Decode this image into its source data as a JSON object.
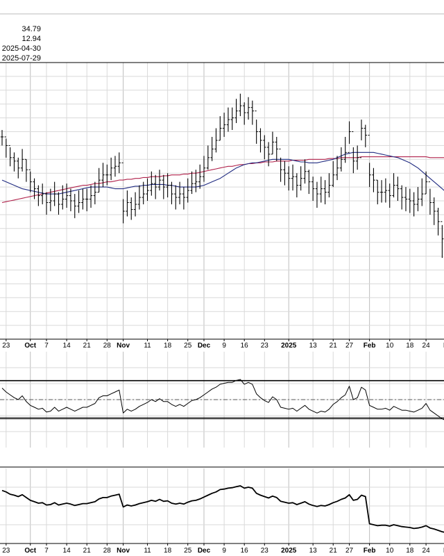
{
  "colors": {
    "price_bars": "#000000",
    "ma_short": "#1f2a80",
    "ma_long": "#b0204a",
    "grid": "#d9d9d9",
    "frame": "#000000",
    "indicator_line": "#000000",
    "midline": "#555555"
  },
  "header": {
    "stats": [
      "34.79",
      "12.94",
      "2025-04-30",
      "2025-07-29"
    ]
  },
  "chart_data": [
    {
      "type": "ohlc",
      "x": [
        "2024-09-20",
        "2024-09-23",
        "2024-09-24",
        "2024-09-25",
        "2024-09-26",
        "2024-09-27",
        "2024-09-30",
        "2024-10-01",
        "2024-10-02",
        "2024-10-03",
        "2024-10-04",
        "2024-10-07",
        "2024-10-08",
        "2024-10-09",
        "2024-10-10",
        "2024-10-11",
        "2024-10-14",
        "2024-10-15",
        "2024-10-16",
        "2024-10-17",
        "2024-10-18",
        "2024-10-21",
        "2024-10-22",
        "2024-10-23",
        "2024-10-24",
        "2024-10-25",
        "2024-10-28",
        "2024-10-29",
        "2024-10-30",
        "2024-10-31",
        "2024-11-01",
        "2024-11-04",
        "2024-11-05",
        "2024-11-06",
        "2024-11-07",
        "2024-11-08",
        "2024-11-11",
        "2024-11-12",
        "2024-11-13",
        "2024-11-14",
        "2024-11-15",
        "2024-11-18",
        "2024-11-19",
        "2024-11-20",
        "2024-11-21",
        "2024-11-22",
        "2024-11-25",
        "2024-11-26",
        "2024-11-27",
        "2024-11-29",
        "2024-12-02",
        "2024-12-03",
        "2024-12-04",
        "2024-12-05",
        "2024-12-06",
        "2024-12-09",
        "2024-12-10",
        "2024-12-11",
        "2024-12-12",
        "2024-12-13",
        "2024-12-16",
        "2024-12-17",
        "2024-12-18",
        "2024-12-19",
        "2024-12-20",
        "2024-12-23",
        "2024-12-24",
        "2024-12-26",
        "2024-12-27",
        "2024-12-30",
        "2024-12-31",
        "2025-01-02",
        "2025-01-03",
        "2025-01-06",
        "2025-01-07",
        "2025-01-08",
        "2025-01-10",
        "2025-01-13",
        "2025-01-14",
        "2025-01-15",
        "2025-01-16",
        "2025-01-17",
        "2025-01-21",
        "2025-01-22",
        "2025-01-23",
        "2025-01-24",
        "2025-01-27",
        "2025-01-28",
        "2025-01-29",
        "2025-01-30",
        "2025-01-31",
        "2025-02-03",
        "2025-02-04",
        "2025-02-05",
        "2025-02-06",
        "2025-02-07",
        "2025-02-10",
        "2025-02-11",
        "2025-02-12",
        "2025-02-13",
        "2025-02-14",
        "2025-02-18",
        "2025-02-19",
        "2025-02-20",
        "2025-02-21",
        "2025-02-24",
        "2025-02-25",
        "2025-02-26",
        "2025-02-27",
        "2025-02-28",
        "2025-03-03"
      ],
      "close": [
        26.2,
        25.7,
        25.0,
        24.8,
        24.4,
        24.9,
        24.3,
        23.6,
        23.2,
        22.8,
        22.9,
        22.4,
        22.5,
        22.9,
        22.3,
        22.6,
        22.8,
        22.5,
        22.2,
        22.4,
        22.6,
        22.6,
        22.8,
        23.0,
        23.7,
        24.0,
        24.0,
        24.4,
        24.5,
        24.7,
        21.9,
        22.4,
        22.0,
        22.3,
        22.7,
        22.9,
        23.1,
        23.5,
        23.3,
        23.7,
        23.3,
        23.4,
        22.9,
        22.7,
        22.9,
        22.7,
        23.1,
        23.5,
        23.6,
        23.9,
        24.4,
        25.0,
        25.5,
        26.0,
        26.7,
        26.9,
        27.2,
        27.3,
        27.7,
        28.0,
        27.6,
        27.9,
        27.7,
        26.5,
        26.0,
        25.6,
        25.2,
        25.9,
        25.5,
        24.3,
        24.1,
        23.8,
        23.9,
        23.4,
        23.8,
        24.2,
        23.6,
        23.2,
        22.9,
        23.2,
        23.0,
        23.4,
        24.0,
        24.4,
        24.9,
        25.3,
        26.5,
        24.8,
        25.0,
        26.7,
        26.3,
        24.0,
        23.7,
        23.0,
        23.0,
        23.1,
        22.8,
        23.4,
        23.2,
        22.7,
        22.6,
        22.5,
        22.3,
        22.6,
        22.9,
        23.6,
        22.4,
        21.9,
        21.3,
        20.3,
        19.8
      ],
      "high": [
        26.6,
        26.1,
        25.6,
        25.3,
        25.0,
        25.5,
        24.9,
        24.2,
        23.8,
        23.4,
        23.5,
        23.0,
        23.2,
        23.6,
        23.0,
        23.4,
        23.5,
        23.2,
        22.9,
        23.1,
        23.2,
        23.2,
        23.4,
        23.6,
        24.4,
        24.7,
        24.6,
        25.0,
        25.1,
        25.3,
        22.6,
        23.1,
        22.7,
        23.0,
        23.4,
        23.6,
        23.8,
        24.2,
        24.0,
        24.3,
        24.0,
        24.1,
        23.6,
        23.4,
        23.6,
        23.3,
        23.8,
        24.2,
        24.3,
        24.6,
        25.1,
        25.7,
        26.2,
        26.7,
        27.4,
        27.6,
        27.9,
        27.9,
        28.4,
        28.7,
        28.2,
        28.5,
        28.3,
        27.2,
        26.7,
        26.3,
        25.9,
        26.5,
        26.2,
        25.0,
        24.8,
        24.5,
        24.6,
        24.1,
        24.5,
        24.9,
        24.3,
        23.9,
        23.6,
        23.9,
        23.7,
        24.1,
        24.8,
        25.1,
        25.6,
        26.2,
        27.1,
        25.6,
        25.7,
        27.2,
        26.9,
        24.7,
        24.4,
        23.7,
        23.7,
        23.8,
        23.5,
        24.1,
        23.9,
        23.4,
        23.3,
        23.2,
        23.0,
        23.3,
        23.8,
        24.2,
        23.2,
        22.7,
        22.1,
        21.1,
        20.8
      ],
      "low": [
        25.7,
        25.0,
        24.5,
        24.2,
        23.8,
        24.2,
        23.6,
        23.0,
        22.6,
        22.2,
        22.3,
        21.7,
        21.9,
        22.2,
        21.7,
        22.0,
        22.1,
        21.9,
        21.5,
        21.8,
        22.0,
        21.9,
        22.1,
        22.3,
        23.0,
        23.3,
        23.4,
        23.7,
        23.9,
        24.1,
        21.2,
        21.6,
        21.4,
        21.6,
        22.0,
        22.3,
        22.5,
        22.8,
        22.6,
        23.1,
        22.6,
        22.7,
        22.3,
        22.0,
        22.3,
        22.0,
        22.4,
        22.9,
        23.0,
        23.2,
        23.6,
        24.3,
        24.8,
        25.3,
        26.0,
        26.2,
        26.5,
        26.6,
        27.0,
        27.4,
        26.9,
        27.2,
        26.9,
        25.8,
        25.3,
        24.9,
        24.5,
        25.2,
        24.8,
        23.6,
        23.4,
        23.1,
        23.1,
        22.7,
        23.1,
        23.5,
        22.9,
        22.5,
        22.1,
        22.4,
        22.3,
        22.7,
        23.3,
        23.7,
        24.2,
        24.7,
        25.8,
        24.1,
        24.3,
        26.0,
        25.6,
        23.3,
        23.0,
        22.3,
        22.4,
        22.4,
        22.1,
        22.7,
        22.5,
        22.0,
        21.9,
        21.8,
        21.6,
        21.9,
        22.2,
        22.9,
        21.7,
        21.1,
        20.5,
        19.2,
        18.8
      ],
      "ma_short": [
        23.7,
        23.6,
        23.5,
        23.4,
        23.3,
        23.2,
        23.15,
        23.1,
        23.05,
        23.0,
        22.95,
        22.9,
        22.9,
        22.9,
        22.9,
        22.95,
        23.0,
        23.05,
        23.1,
        23.15,
        23.2,
        23.25,
        23.3,
        23.3,
        23.3,
        23.3,
        23.3,
        23.25,
        23.2,
        23.2,
        23.2,
        23.25,
        23.3,
        23.35,
        23.35,
        23.4,
        23.4,
        23.45,
        23.45,
        23.45,
        23.45,
        23.4,
        23.4,
        23.35,
        23.3,
        23.3,
        23.3,
        23.3,
        23.3,
        23.35,
        23.4,
        23.5,
        23.6,
        23.7,
        23.8,
        23.95,
        24.1,
        24.25,
        24.4,
        24.5,
        24.6,
        24.65,
        24.7,
        24.7,
        24.75,
        24.8,
        24.85,
        24.9,
        24.9,
        24.9,
        24.9,
        24.9,
        24.85,
        24.8,
        24.75,
        24.75,
        24.7,
        24.7,
        24.7,
        24.75,
        24.8,
        24.85,
        24.9,
        25.0,
        25.1,
        25.2,
        25.25,
        25.3,
        25.3,
        25.3,
        25.3,
        25.3,
        25.3,
        25.25,
        25.2,
        25.15,
        25.1,
        25.05,
        25.0,
        24.9,
        24.8,
        24.7,
        24.55,
        24.4,
        24.2,
        24.0,
        23.8,
        23.6,
        23.4,
        23.2,
        23.0
      ],
      "ma_long": [
        22.4,
        22.45,
        22.5,
        22.55,
        22.6,
        22.65,
        22.7,
        22.75,
        22.8,
        22.85,
        22.9,
        22.95,
        23.0,
        23.05,
        23.1,
        23.15,
        23.2,
        23.25,
        23.3,
        23.35,
        23.4,
        23.4,
        23.45,
        23.5,
        23.5,
        23.55,
        23.6,
        23.6,
        23.65,
        23.7,
        23.7,
        23.75,
        23.75,
        23.8,
        23.8,
        23.85,
        23.85,
        23.9,
        23.9,
        23.9,
        23.95,
        23.95,
        24.0,
        24.0,
        24.0,
        24.05,
        24.05,
        24.1,
        24.1,
        24.15,
        24.2,
        24.25,
        24.3,
        24.35,
        24.4,
        24.45,
        24.5,
        24.5,
        24.55,
        24.6,
        24.6,
        24.65,
        24.65,
        24.7,
        24.7,
        24.75,
        24.75,
        24.75,
        24.8,
        24.8,
        24.8,
        24.8,
        24.85,
        24.85,
        24.85,
        24.85,
        24.9,
        24.9,
        24.9,
        24.9,
        24.9,
        24.95,
        24.95,
        24.95,
        25.0,
        25.0,
        25.0,
        25.0,
        25.0,
        25.05,
        25.05,
        25.05,
        25.05,
        25.05,
        25.05,
        25.05,
        25.05,
        25.05,
        25.05,
        25.05,
        25.05,
        25.05,
        25.05,
        25.05,
        25.05,
        25.05,
        25.0,
        25.0,
        25.0,
        25.0,
        25.0
      ],
      "y_range": [
        14.5,
        30.5
      ],
      "grid": true
    },
    {
      "type": "line",
      "x_ref": "same dates as price panel",
      "values": [
        62,
        58,
        55,
        52,
        50,
        54,
        48,
        44,
        42,
        40,
        41,
        37,
        38,
        42,
        38,
        40,
        42,
        40,
        38,
        40,
        42,
        42,
        44,
        46,
        52,
        54,
        54,
        56,
        58,
        60,
        36,
        40,
        38,
        40,
        43,
        45,
        47,
        50,
        48,
        51,
        48,
        48,
        45,
        43,
        45,
        43,
        46,
        49,
        50,
        52,
        55,
        58,
        61,
        63,
        66,
        67,
        68,
        68,
        70,
        71,
        66,
        68,
        66,
        56,
        52,
        49,
        47,
        53,
        50,
        42,
        41,
        40,
        41,
        38,
        41,
        44,
        40,
        38,
        36,
        38,
        37,
        40,
        45,
        48,
        52,
        55,
        64,
        50,
        52,
        63,
        60,
        44,
        42,
        40,
        40,
        41,
        39,
        43,
        41,
        39,
        39,
        38,
        37,
        39,
        41,
        46,
        39,
        36,
        33,
        30,
        28
      ],
      "y_range": [
        0,
        100
      ],
      "reference_levels": [
        70,
        50,
        30
      ],
      "grid": true
    },
    {
      "type": "line",
      "x_ref": "same dates as price panel",
      "values": [
        9.3,
        9.0,
        8.5,
        8.3,
        8.0,
        8.4,
        7.8,
        7.2,
        6.9,
        6.6,
        6.7,
        6.2,
        6.3,
        6.7,
        6.2,
        6.4,
        6.6,
        6.4,
        6.1,
        6.3,
        6.5,
        6.5,
        6.7,
        6.9,
        7.5,
        7.8,
        7.8,
        8.1,
        8.3,
        8.5,
        5.8,
        6.2,
        6.0,
        6.2,
        6.5,
        6.7,
        6.9,
        7.2,
        7.0,
        7.4,
        7.0,
        7.1,
        6.6,
        6.4,
        6.6,
        6.4,
        6.8,
        7.1,
        7.2,
        7.5,
        7.9,
        8.3,
        8.7,
        9.0,
        9.5,
        9.6,
        9.8,
        9.9,
        10.1,
        10.3,
        9.8,
        10.0,
        9.8,
        8.7,
        8.3,
        8.0,
        7.7,
        8.1,
        7.8,
        7.0,
        6.8,
        6.6,
        6.7,
        6.3,
        6.6,
        6.9,
        6.4,
        6.1,
        5.9,
        6.1,
        6.0,
        6.3,
        6.7,
        7.0,
        7.4,
        7.7,
        8.4,
        7.2,
        7.4,
        8.3,
        8.0,
        2.2,
        2.0,
        1.8,
        1.9,
        1.9,
        1.7,
        2.0,
        1.8,
        1.6,
        1.5,
        1.4,
        1.2,
        1.3,
        1.5,
        1.8,
        1.3,
        1.1,
        0.8,
        0.5,
        0.3
      ],
      "y_range": [
        -2,
        14
      ],
      "grid": true
    }
  ],
  "x_axis": {
    "ticks": [
      {
        "label": "23",
        "date": "2024-09-23"
      },
      {
        "label": "Oct",
        "date": "2024-10-01",
        "bold": true
      },
      {
        "label": "7",
        "date": "2024-10-07"
      },
      {
        "label": "14",
        "date": "2024-10-14"
      },
      {
        "label": "21",
        "date": "2024-10-21"
      },
      {
        "label": "28",
        "date": "2024-10-28"
      },
      {
        "label": "Nov",
        "date": "2024-11-01",
        "bold": true
      },
      {
        "label": "11",
        "date": "2024-11-11"
      },
      {
        "label": "18",
        "date": "2024-11-18"
      },
      {
        "label": "25",
        "date": "2024-11-25"
      },
      {
        "label": "Dec",
        "date": "2024-12-02",
        "bold": true
      },
      {
        "label": "9",
        "date": "2024-12-09"
      },
      {
        "label": "16",
        "date": "2024-12-16"
      },
      {
        "label": "23",
        "date": "2024-12-23"
      },
      {
        "label": "2025",
        "date": "2025-01-02",
        "bold": true
      },
      {
        "label": "13",
        "date": "2025-01-13"
      },
      {
        "label": "21",
        "date": "2025-01-21"
      },
      {
        "label": "27",
        "date": "2025-01-27"
      },
      {
        "label": "Feb",
        "date": "2025-02-03",
        "bold": true
      },
      {
        "label": "10",
        "date": "2025-02-10"
      },
      {
        "label": "18",
        "date": "2025-02-18"
      },
      {
        "label": "24",
        "date": "2025-02-24"
      },
      {
        "label": "M",
        "date": "2025-03-03",
        "bold": true
      }
    ]
  }
}
